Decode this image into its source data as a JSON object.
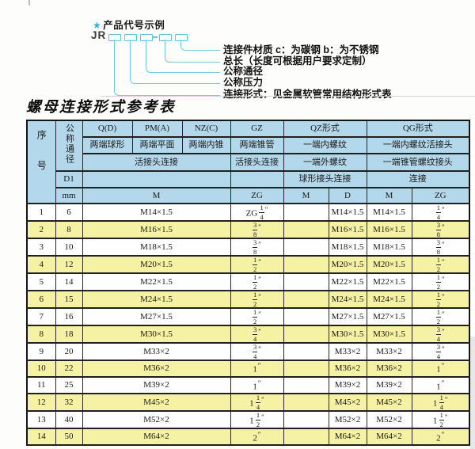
{
  "diagram": {
    "star_icon": "★",
    "heading": "产品代号示例",
    "code_prefix": "JR",
    "box_count": 5,
    "labels": [
      "连接件材质  c：为碳钢  b：为不锈钢",
      "总长（长度可根据用户要求定制）",
      "公称通径",
      "公称压力",
      "连接形式：见金属软管常用结构形式表"
    ]
  },
  "title": "螺母连接形式参考表",
  "table": {
    "header": {
      "seq": "序号",
      "dn": "公称通径",
      "d1": "D1",
      "mm": "mm",
      "q": "Q(D)",
      "q_sub": "两端球形",
      "pm": "PM(A)",
      "pm_sub": "两端平面",
      "nz": "NZ(C)",
      "nz_sub": "两端内锥",
      "union_joint": "活接头连接",
      "gz": "GZ",
      "gz_sub": "两端锥管",
      "gz_sub2": "活接头连接",
      "qz": "QZ形式",
      "qz_sub1": "一端内螺纹",
      "qz_sub2": "一端外螺纹",
      "qz_sub3": "球形接头连接",
      "qg": "QG形式",
      "qg_sub1": "一端内螺纹活接头",
      "qg_sub2": "一端锥管螺纹接头",
      "qg_sub3": "连接",
      "unit_m": "M",
      "unit_zg": "ZG",
      "unit_qz_m": "M",
      "unit_qz_d": "D",
      "unit_qg_m": "M",
      "unit_qg_zg": "ZG"
    },
    "rows": [
      {
        "seq": "1",
        "dn": "6",
        "m": "M14×1.5",
        "zg": "ZG 1/4\"",
        "qz_m": "",
        "qz_d": "M14×1.5",
        "qg_m": "M14×1.5",
        "qg_zg": "1/4\"",
        "highlight": false
      },
      {
        "seq": "2",
        "dn": "8",
        "m": "M16×1.5",
        "zg": "3/8\"",
        "qz_m": "",
        "qz_d": "M16×1.5",
        "qg_m": "M16×1.5",
        "qg_zg": "3/8\"",
        "highlight": true
      },
      {
        "seq": "3",
        "dn": "10",
        "m": "M18×1.5",
        "zg": "3/8\"",
        "qz_m": "",
        "qz_d": "M18×1.5",
        "qg_m": "M18×1.5",
        "qg_zg": "3/8\"",
        "highlight": false
      },
      {
        "seq": "4",
        "dn": "12",
        "m": "M20×1.5",
        "zg": "1/2\"",
        "qz_m": "",
        "qz_d": "M20×1.5",
        "qg_m": "M20×1.5",
        "qg_zg": "1/2\"",
        "highlight": true
      },
      {
        "seq": "5",
        "dn": "14",
        "m": "M22×1.5",
        "zg": "1/2\"",
        "qz_m": "",
        "qz_d": "M22×1.5",
        "qg_m": "M22×1.5",
        "qg_zg": "1/2\"",
        "highlight": false
      },
      {
        "seq": "6",
        "dn": "15",
        "m": "M24×1.5",
        "zg": "1/2\"",
        "qz_m": "",
        "qz_d": "M24×1.5",
        "qg_m": "M24×1.5",
        "qg_zg": "1/2\"",
        "highlight": true
      },
      {
        "seq": "7",
        "dn": "16",
        "m": "M27×1.5",
        "zg": "1/2\"",
        "qz_m": "",
        "qz_d": "M27×1.5",
        "qg_m": "M27×1.5",
        "qg_zg": "1/2\"",
        "highlight": false
      },
      {
        "seq": "8",
        "dn": "18",
        "m": "M30×1.5",
        "zg": "3/4\"",
        "qz_m": "",
        "qz_d": "M30×1.5",
        "qg_m": "M30×1.5",
        "qg_zg": "3/4\"",
        "highlight": true
      },
      {
        "seq": "9",
        "dn": "20",
        "m": "M33×2",
        "zg": "3/4\"",
        "qz_m": "",
        "qz_d": "M33×2",
        "qg_m": "M33×2",
        "qg_zg": "3/4\"",
        "highlight": false
      },
      {
        "seq": "10",
        "dn": "22",
        "m": "M36×2",
        "zg": "1\"",
        "qz_m": "",
        "qz_d": "M36×2",
        "qg_m": "M36×2",
        "qg_zg": "1\"",
        "highlight": true
      },
      {
        "seq": "11",
        "dn": "25",
        "m": "M39×2",
        "zg": "1\"",
        "qz_m": "",
        "qz_d": "M39×2",
        "qg_m": "M39×2",
        "qg_zg": "1\"",
        "highlight": false
      },
      {
        "seq": "12",
        "dn": "32",
        "m": "M45×2",
        "zg": "1 1/4\"",
        "qz_m": "",
        "qz_d": "M45×2",
        "qg_m": "M45×2",
        "qg_zg": "1 1/4\"",
        "highlight": true
      },
      {
        "seq": "13",
        "dn": "40",
        "m": "M52×2",
        "zg": "1 1/2\"",
        "qz_m": "",
        "qz_d": "M52×2",
        "qg_m": "M52×2",
        "qg_zg": "1 1/2\"",
        "highlight": false
      },
      {
        "seq": "14",
        "dn": "50",
        "m": "M64×2",
        "zg": "2\"",
        "qz_m": "",
        "qz_d": "M64×2",
        "qg_m": "M64×2",
        "qg_zg": "2\"",
        "highlight": true
      }
    ],
    "colors": {
      "header_blue": "#b4d8eb",
      "row_yellow": "#f6f2a3",
      "accent_cyan": "#5ec6db",
      "border_dark": "#202020"
    }
  }
}
